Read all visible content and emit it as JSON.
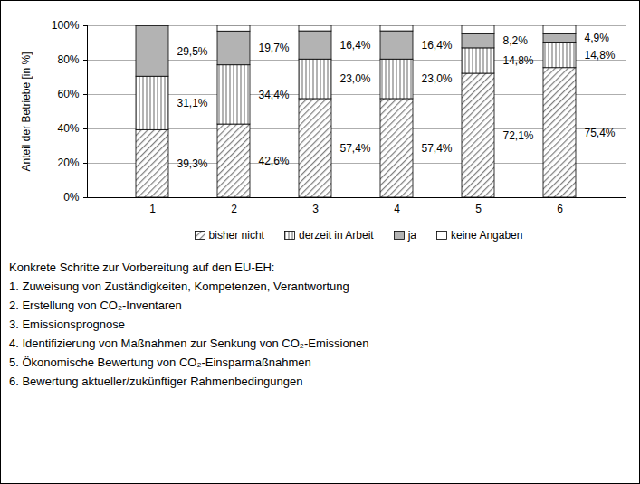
{
  "chart_data": {
    "type": "bar",
    "stacked": true,
    "data_labels": true,
    "grid": true,
    "legend": "bottom",
    "ylabel": "Anteil der Betriebe [in %]",
    "categories": [
      "1",
      "2",
      "3",
      "4",
      "5",
      "6"
    ],
    "ylim": [
      0,
      100
    ],
    "yticks": [
      {
        "value": 0,
        "label": "0%"
      },
      {
        "value": 20,
        "label": "20%"
      },
      {
        "value": 40,
        "label": "40%"
      },
      {
        "value": 60,
        "label": "60%"
      },
      {
        "value": 80,
        "label": "80%"
      },
      {
        "value": 100,
        "label": "100%"
      }
    ],
    "series": [
      {
        "name": "bisher nicht",
        "color": "#808080",
        "values": [
          39.3,
          42.6,
          57.4,
          57.4,
          72.1,
          75.4
        ],
        "value_labels": [
          "39,3%",
          "42,6%",
          "57,4%",
          "57,4%",
          "72,1%",
          "75,4%"
        ]
      },
      {
        "name": "derzeit in Arbeit",
        "color": "#808080",
        "values": [
          31.1,
          34.4,
          23.0,
          23.0,
          14.8,
          14.8
        ],
        "value_labels": [
          "31,1%",
          "34,4%",
          "23,0%",
          "23,0%",
          "14,8%",
          "14,8%"
        ]
      },
      {
        "name": "ja",
        "color": "#b3b3b3",
        "values": [
          29.5,
          19.7,
          16.4,
          16.4,
          8.2,
          4.9
        ],
        "value_labels": [
          "29,5%",
          "19,7%",
          "16,4%",
          "16,4%",
          "8,2%",
          "4,9%"
        ]
      },
      {
        "name": "keine Angaben",
        "color": "#ffffff",
        "values": [
          0.1,
          3.3,
          3.2,
          3.2,
          4.9,
          4.9
        ]
      }
    ],
    "annotations": [
      "Konkrete Schritte zur Vorbereitung auf den EU-EH:",
      "1. Zuweisung von Zuständigkeiten, Kompetenzen, Verantwortung",
      "2. Erstellung von CO₂-Inventaren",
      "3. Emissionsprognose",
      "4. Identifizierung von Maßnahmen zur Senkung von CO₂-Emissionen",
      "5. Ökonomische Bewertung von CO₂-Einsparmaßnahmen",
      "6. Bewertung aktueller/zukünftiger Rahmenbedingungen"
    ]
  }
}
